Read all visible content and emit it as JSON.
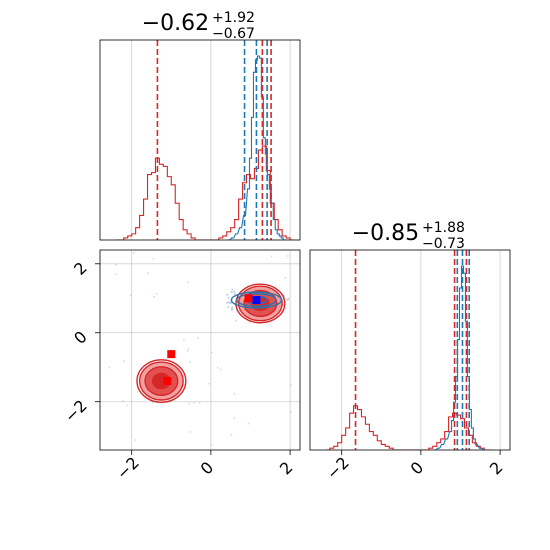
{
  "chart_data": {
    "type": "corner",
    "titles": {
      "param0": {
        "median": "−0.62",
        "plus": "+1.92",
        "minus": "−0.67"
      },
      "param1": {
        "median": "−0.85",
        "plus": "+1.88",
        "minus": "−0.73"
      }
    },
    "xlim": [
      -2.8,
      2.25
    ],
    "ylim": [
      -3.4,
      2.4
    ],
    "ticks_x": [
      -2,
      0,
      2
    ],
    "ticks_y": [
      -2,
      0,
      2
    ],
    "tick_labels_x": [
      "−2",
      "0",
      "2"
    ],
    "tick_labels_y": [
      "−2",
      "0",
      "2"
    ],
    "grid": true,
    "colors": {
      "blue": "#1f77b4",
      "red": "#d62728",
      "grid": "#b0b0b0"
    },
    "hist_param0": {
      "bins_x": [
        -2.35,
        -2.25,
        -2.15,
        -2.05,
        -1.95,
        -1.85,
        -1.75,
        -1.65,
        -1.55,
        -1.45,
        -1.35,
        -1.25,
        -1.15,
        -1.05,
        -0.95,
        -0.85,
        -0.75,
        -0.65,
        -0.55,
        -0.45,
        -0.35,
        -0.25,
        -0.15,
        -0.05,
        0.05,
        0.15,
        0.25,
        0.35,
        0.45,
        0.55,
        0.65,
        0.75,
        0.85,
        0.95,
        1.05,
        1.15,
        1.25,
        1.35,
        1.45,
        1.55,
        1.65,
        1.75,
        1.85,
        1.95,
        2.05
      ],
      "red_counts": [
        0,
        0,
        1,
        2,
        3,
        6,
        12,
        20,
        32,
        33,
        40,
        37,
        36,
        31,
        27,
        18,
        10,
        5,
        3,
        1,
        0,
        0,
        0,
        0,
        0,
        0,
        1,
        2,
        4,
        6,
        10,
        20,
        28,
        32,
        30,
        35,
        44,
        46,
        34,
        18,
        10,
        5,
        2,
        1,
        0
      ],
      "red_lines": [
        -1.35,
        1.3,
        1.52
      ],
      "blue_counts_x": [
        0.45,
        0.55,
        0.65,
        0.75,
        0.85,
        0.95,
        1.0,
        1.05,
        1.1,
        1.15,
        1.2,
        1.25,
        1.3,
        1.35,
        1.4,
        1.45,
        1.5,
        1.55,
        1.6,
        1.65,
        1.7,
        1.75,
        1.8,
        1.85,
        1.9
      ],
      "blue_counts": [
        0,
        1,
        3,
        6,
        12,
        25,
        40,
        60,
        82,
        88,
        90,
        89,
        70,
        50,
        42,
        32,
        25,
        18,
        10,
        5,
        3,
        2,
        1,
        0,
        0
      ],
      "blue_lines": [
        0.85,
        1.15,
        1.42
      ]
    },
    "hist_param1": {
      "bins_x": [
        -2.35,
        -2.25,
        -2.15,
        -2.05,
        -1.95,
        -1.85,
        -1.75,
        -1.65,
        -1.55,
        -1.45,
        -1.35,
        -1.25,
        -1.15,
        -1.05,
        -0.95,
        -0.85,
        -0.75,
        -0.65,
        -0.55,
        -0.45,
        -0.35,
        -0.25,
        -0.15,
        -0.05,
        0.05,
        0.15,
        0.25,
        0.35,
        0.45,
        0.55,
        0.65,
        0.75,
        0.85,
        0.95,
        1.05,
        1.15,
        1.25,
        1.35,
        1.45,
        1.55,
        1.65,
        1.75
      ],
      "red_counts": [
        0,
        1,
        2,
        4,
        8,
        12,
        20,
        24,
        22,
        18,
        14,
        10,
        8,
        5,
        3,
        2,
        1,
        0,
        0,
        0,
        0,
        0,
        0,
        0,
        0,
        0,
        1,
        2,
        4,
        6,
        10,
        18,
        20,
        19,
        17,
        12,
        8,
        4,
        2,
        1,
        0,
        0
      ],
      "red_lines": [
        -1.65,
        0.85,
        1.15
      ],
      "blue_counts_x": [
        0.35,
        0.45,
        0.55,
        0.65,
        0.75,
        0.8,
        0.85,
        0.9,
        0.95,
        1.0,
        1.05,
        1.1,
        1.15,
        1.2,
        1.25,
        1.3,
        1.35,
        1.4,
        1.5,
        1.6,
        1.7
      ],
      "blue_counts": [
        0,
        1,
        3,
        6,
        10,
        16,
        26,
        40,
        60,
        88,
        100,
        96,
        70,
        40,
        22,
        12,
        6,
        3,
        1,
        0,
        0
      ],
      "blue_lines": [
        0.92,
        1.05,
        1.22
      ]
    },
    "scatter_2d": {
      "red_cluster_a": {
        "center": [
          -1.25,
          -1.4
        ],
        "rx": 0.55,
        "ry": 0.55,
        "levels": [
          0.4,
          0.75,
          1.0,
          1.12
        ]
      },
      "red_cluster_b": {
        "center": [
          1.25,
          0.85
        ],
        "rx": 0.55,
        "ry": 0.5,
        "levels": [
          0.4,
          0.75,
          1.0,
          1.12
        ]
      },
      "blue_cluster": {
        "center": [
          1.15,
          0.95
        ],
        "rx": 0.55,
        "ry": 0.2,
        "levels": [
          0.5,
          0.9,
          1.15
        ]
      },
      "markers": [
        {
          "x": -1.0,
          "y": -0.62,
          "color": "red"
        },
        {
          "x": -1.1,
          "y": -1.4,
          "color": "red"
        },
        {
          "x": 0.95,
          "y": 1.0,
          "color": "red"
        },
        {
          "x": 1.15,
          "y": 0.95,
          "color": "blue"
        }
      ]
    }
  }
}
